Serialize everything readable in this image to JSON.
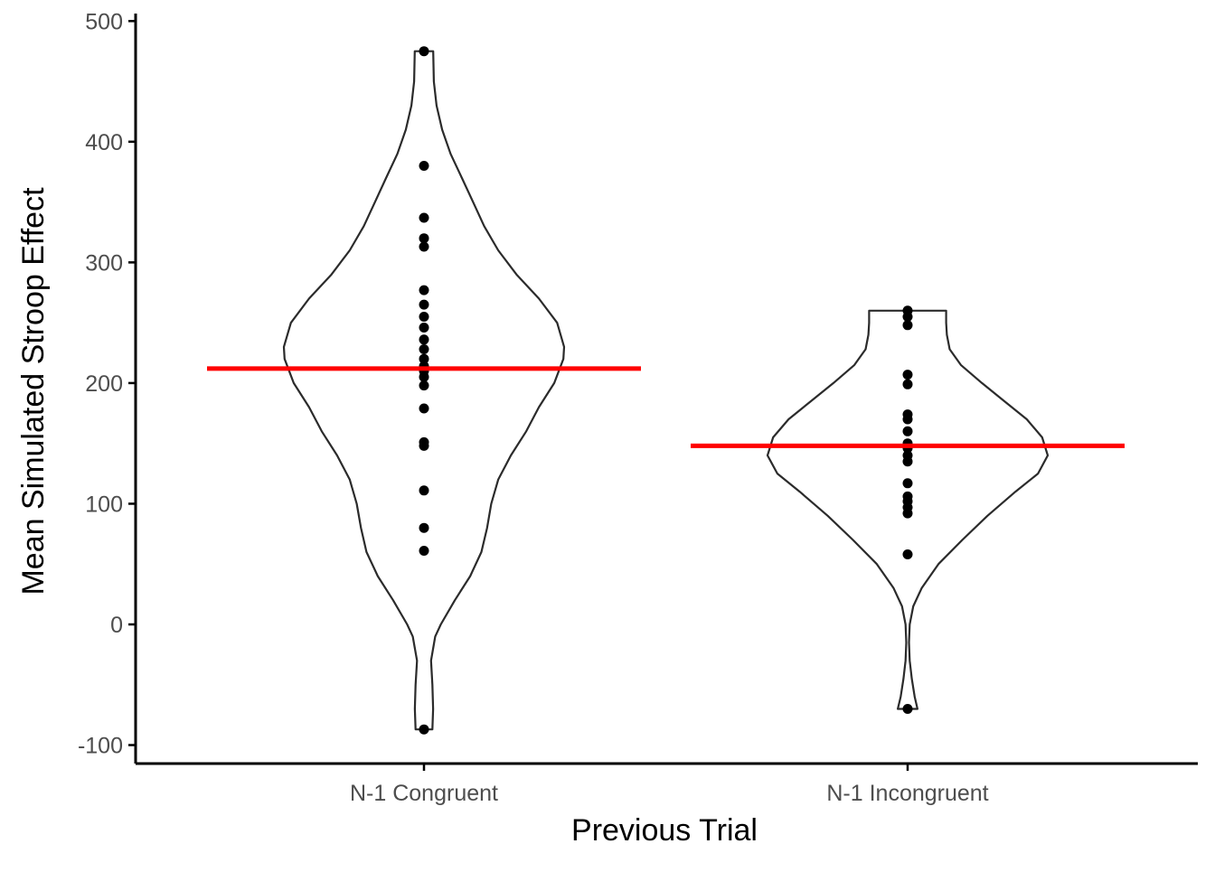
{
  "chart_data": {
    "type": "violin",
    "xlabel": "Previous Trial",
    "ylabel": "Mean Simulated Stroop Effect",
    "ylim": [
      -115,
      505
    ],
    "yticks": [
      -100,
      0,
      100,
      200,
      300,
      400,
      500
    ],
    "categories": [
      "N-1 Congruent",
      "N-1 Incongruent"
    ],
    "grid": false,
    "legend": "none",
    "colors": {
      "mean_line": "#ff0000",
      "points": "#000000",
      "violin_outline": "#2b2b2b",
      "axis": "#000000",
      "tick_label": "#4d4d4d"
    },
    "series": [
      {
        "category": "N-1 Congruent",
        "mean": 212,
        "points": [
          475,
          380,
          337,
          320,
          313,
          277,
          265,
          255,
          246,
          236,
          228,
          220,
          214,
          210,
          205,
          198,
          179,
          151,
          148,
          111,
          80,
          61,
          -87
        ],
        "density": [
          [
            -87,
            0.06
          ],
          [
            -70,
            0.065
          ],
          [
            -50,
            0.06
          ],
          [
            -30,
            0.05
          ],
          [
            -10,
            0.08
          ],
          [
            0,
            0.12
          ],
          [
            20,
            0.22
          ],
          [
            40,
            0.33
          ],
          [
            60,
            0.41
          ],
          [
            80,
            0.45
          ],
          [
            100,
            0.48
          ],
          [
            120,
            0.53
          ],
          [
            140,
            0.62
          ],
          [
            160,
            0.73
          ],
          [
            180,
            0.82
          ],
          [
            200,
            0.93
          ],
          [
            220,
            0.995
          ],
          [
            230,
            1.0
          ],
          [
            250,
            0.95
          ],
          [
            270,
            0.82
          ],
          [
            290,
            0.66
          ],
          [
            310,
            0.53
          ],
          [
            330,
            0.43
          ],
          [
            350,
            0.35
          ],
          [
            370,
            0.27
          ],
          [
            390,
            0.19
          ],
          [
            410,
            0.13
          ],
          [
            430,
            0.09
          ],
          [
            450,
            0.07
          ],
          [
            475,
            0.066
          ]
        ]
      },
      {
        "category": "N-1 Incongruent",
        "mean": 148,
        "points": [
          260,
          255,
          248,
          207,
          199,
          174,
          170,
          160,
          150,
          146,
          140,
          135,
          117,
          106,
          102,
          97,
          92,
          58,
          -70
        ],
        "density": [
          [
            -70,
            0.07
          ],
          [
            -60,
            0.05
          ],
          [
            -45,
            0.03
          ],
          [
            -30,
            0.015
          ],
          [
            -15,
            0.01
          ],
          [
            0,
            0.015
          ],
          [
            15,
            0.04
          ],
          [
            30,
            0.1
          ],
          [
            50,
            0.22
          ],
          [
            70,
            0.39
          ],
          [
            90,
            0.57
          ],
          [
            110,
            0.77
          ],
          [
            125,
            0.93
          ],
          [
            140,
            1.0
          ],
          [
            155,
            0.96
          ],
          [
            170,
            0.85
          ],
          [
            185,
            0.69
          ],
          [
            200,
            0.53
          ],
          [
            215,
            0.38
          ],
          [
            228,
            0.3
          ],
          [
            240,
            0.28
          ],
          [
            250,
            0.275
          ],
          [
            260,
            0.275
          ]
        ]
      }
    ]
  }
}
